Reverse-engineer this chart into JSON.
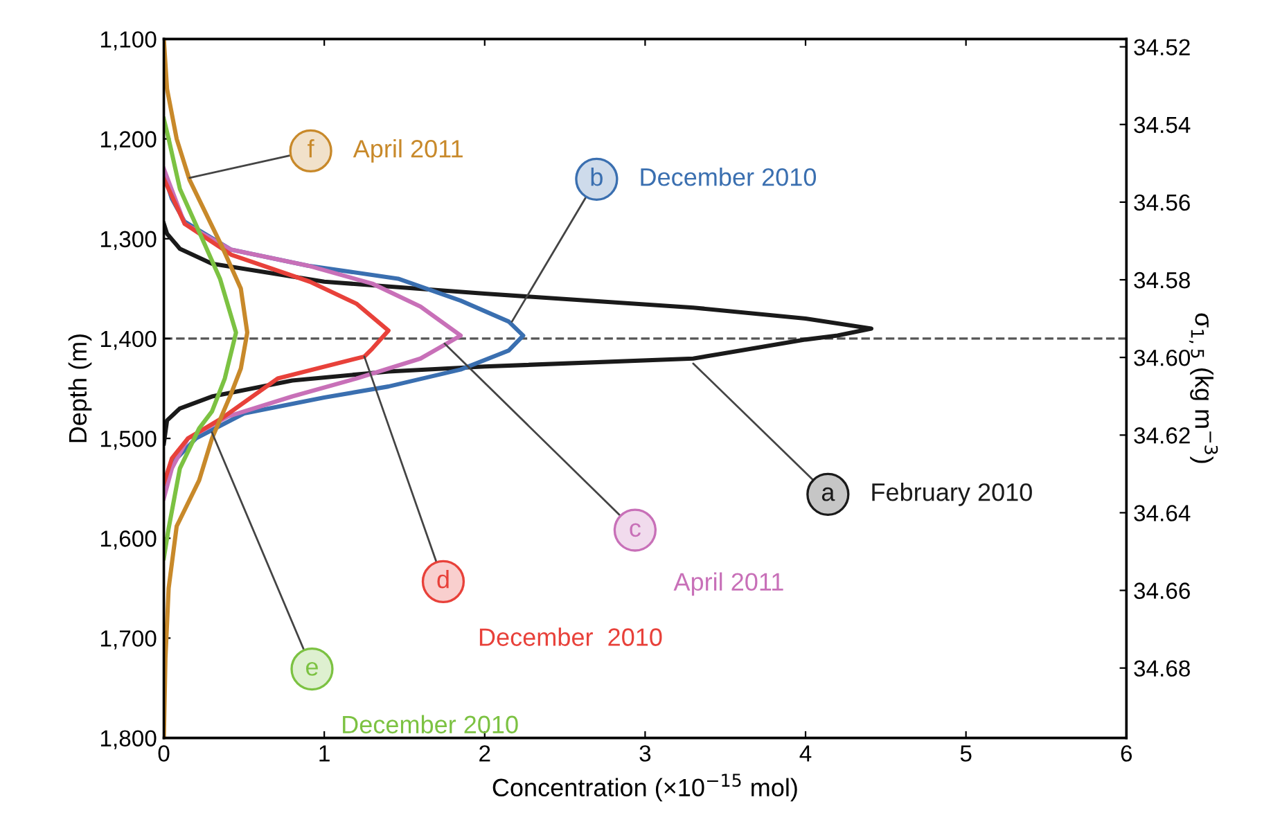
{
  "chart_data": {
    "type": "line",
    "xlabel": "Concentration (×10$^{−15}$ mol)",
    "ylabel": "Depth (m)",
    "y2label": "σ$_{1,5}$ (kg m$^{−3}$)",
    "xlim": [
      0,
      6
    ],
    "xticks": [
      0,
      1,
      2,
      3,
      4,
      5,
      6
    ],
    "ylim": [
      1800,
      1100
    ],
    "yticks": [
      {
        "value": 1100,
        "label": "1,100"
      },
      {
        "value": 1200,
        "label": "1,200"
      },
      {
        "value": 1300,
        "label": "1,300"
      },
      {
        "value": 1400,
        "label": "1,400"
      },
      {
        "value": 1500,
        "label": "1,500"
      },
      {
        "value": 1600,
        "label": "1,600"
      },
      {
        "value": 1700,
        "label": "1,700"
      },
      {
        "value": 1800,
        "label": "1,800"
      }
    ],
    "y2lim": [
      34.698,
      34.518
    ],
    "y2ticks": [
      34.52,
      34.54,
      34.56,
      34.58,
      {
        "value": 34.6,
        "label": "34.60"
      },
      34.62,
      34.64,
      34.66,
      34.68
    ],
    "grid": false,
    "legend": "right",
    "marker": "none",
    "line_style": "solid",
    "ref_lines": [
      {
        "axis": "y",
        "value": 1400,
        "line_style": "dashed",
        "color": "#555555"
      }
    ],
    "series": [
      {
        "name": "February 2010",
        "color": "#1a1a1a",
        "x": [
          0,
          0.02,
          0.1,
          0.3,
          1.0,
          2.0,
          3.3,
          4.0,
          4.41,
          4.2,
          4.0,
          3.3,
          2.0,
          1.4,
          0.8,
          0.3,
          0.1,
          0.02,
          0
        ],
        "values": [
          1285,
          1295,
          1310,
          1325,
          1343,
          1355,
          1369,
          1380,
          1390,
          1397,
          1401,
          1420,
          1428,
          1433,
          1442,
          1458,
          1470,
          1482,
          1505
        ]
      },
      {
        "name": "December 2010",
        "color": "#3a6fb0",
        "x": [
          0,
          0.05,
          0.13,
          0.42,
          0.9,
          1.46,
          1.85,
          2.15,
          2.24,
          2.15,
          1.85,
          1.4,
          1.0,
          0.5,
          0.2,
          0.05,
          0
        ],
        "values": [
          1235,
          1260,
          1283,
          1311,
          1327,
          1340,
          1362,
          1383,
          1397,
          1412,
          1431,
          1448,
          1459,
          1475,
          1500,
          1525,
          1550
        ]
      },
      {
        "name": "April 2011",
        "color": "#c870b8",
        "x": [
          0,
          0.13,
          0.42,
          0.9,
          1.3,
          1.6,
          1.85,
          1.6,
          1.2,
          0.8,
          0.4,
          0.15,
          0.05,
          0
        ],
        "values": [
          1230,
          1285,
          1311,
          1327,
          1345,
          1368,
          1397,
          1420,
          1440,
          1458,
          1478,
          1500,
          1530,
          1560
        ]
      },
      {
        "name": "December  2010",
        "color": "#e8413a",
        "x": [
          0,
          0.13,
          0.42,
          0.91,
          1.2,
          1.4,
          1.3,
          1.25,
          0.71,
          0.36,
          0.15,
          0.05,
          0
        ],
        "values": [
          1240,
          1285,
          1316,
          1343,
          1365,
          1392,
          1410,
          1418,
          1440,
          1480,
          1500,
          1520,
          1545
        ]
      },
      {
        "name": "December 2010",
        "color": "#7cc242",
        "x": [
          0,
          0.03,
          0.1,
          0.22,
          0.35,
          0.45,
          0.38,
          0.3,
          0.22,
          0.1,
          0.03,
          0
        ],
        "values": [
          1180,
          1200,
          1250,
          1293,
          1340,
          1394,
          1440,
          1473,
          1490,
          1530,
          1590,
          1620
        ]
      },
      {
        "name": "April 2011",
        "color": "#c8892a",
        "x": [
          0,
          0.02,
          0.08,
          0.16,
          0.36,
          0.48,
          0.52,
          0.48,
          0.42,
          0.3,
          0.22,
          0.08,
          0.03,
          0.01,
          0
        ],
        "values": [
          1100,
          1150,
          1200,
          1241,
          1307,
          1350,
          1394,
          1430,
          1455,
          1500,
          1542,
          1588,
          1650,
          1720,
          1800
        ]
      }
    ],
    "annotations": [
      {
        "text": "a",
        "x": 3.3,
        "y": 1425
      },
      {
        "text": "b",
        "x": 2.17,
        "y": 1383
      },
      {
        "text": "c",
        "x": 1.75,
        "y": 1405
      },
      {
        "text": "d",
        "x": 1.25,
        "y": 1418
      },
      {
        "text": "e",
        "x": 0.3,
        "y": 1494
      },
      {
        "text": "f",
        "x": 0.16,
        "y": 1239
      }
    ]
  }
}
